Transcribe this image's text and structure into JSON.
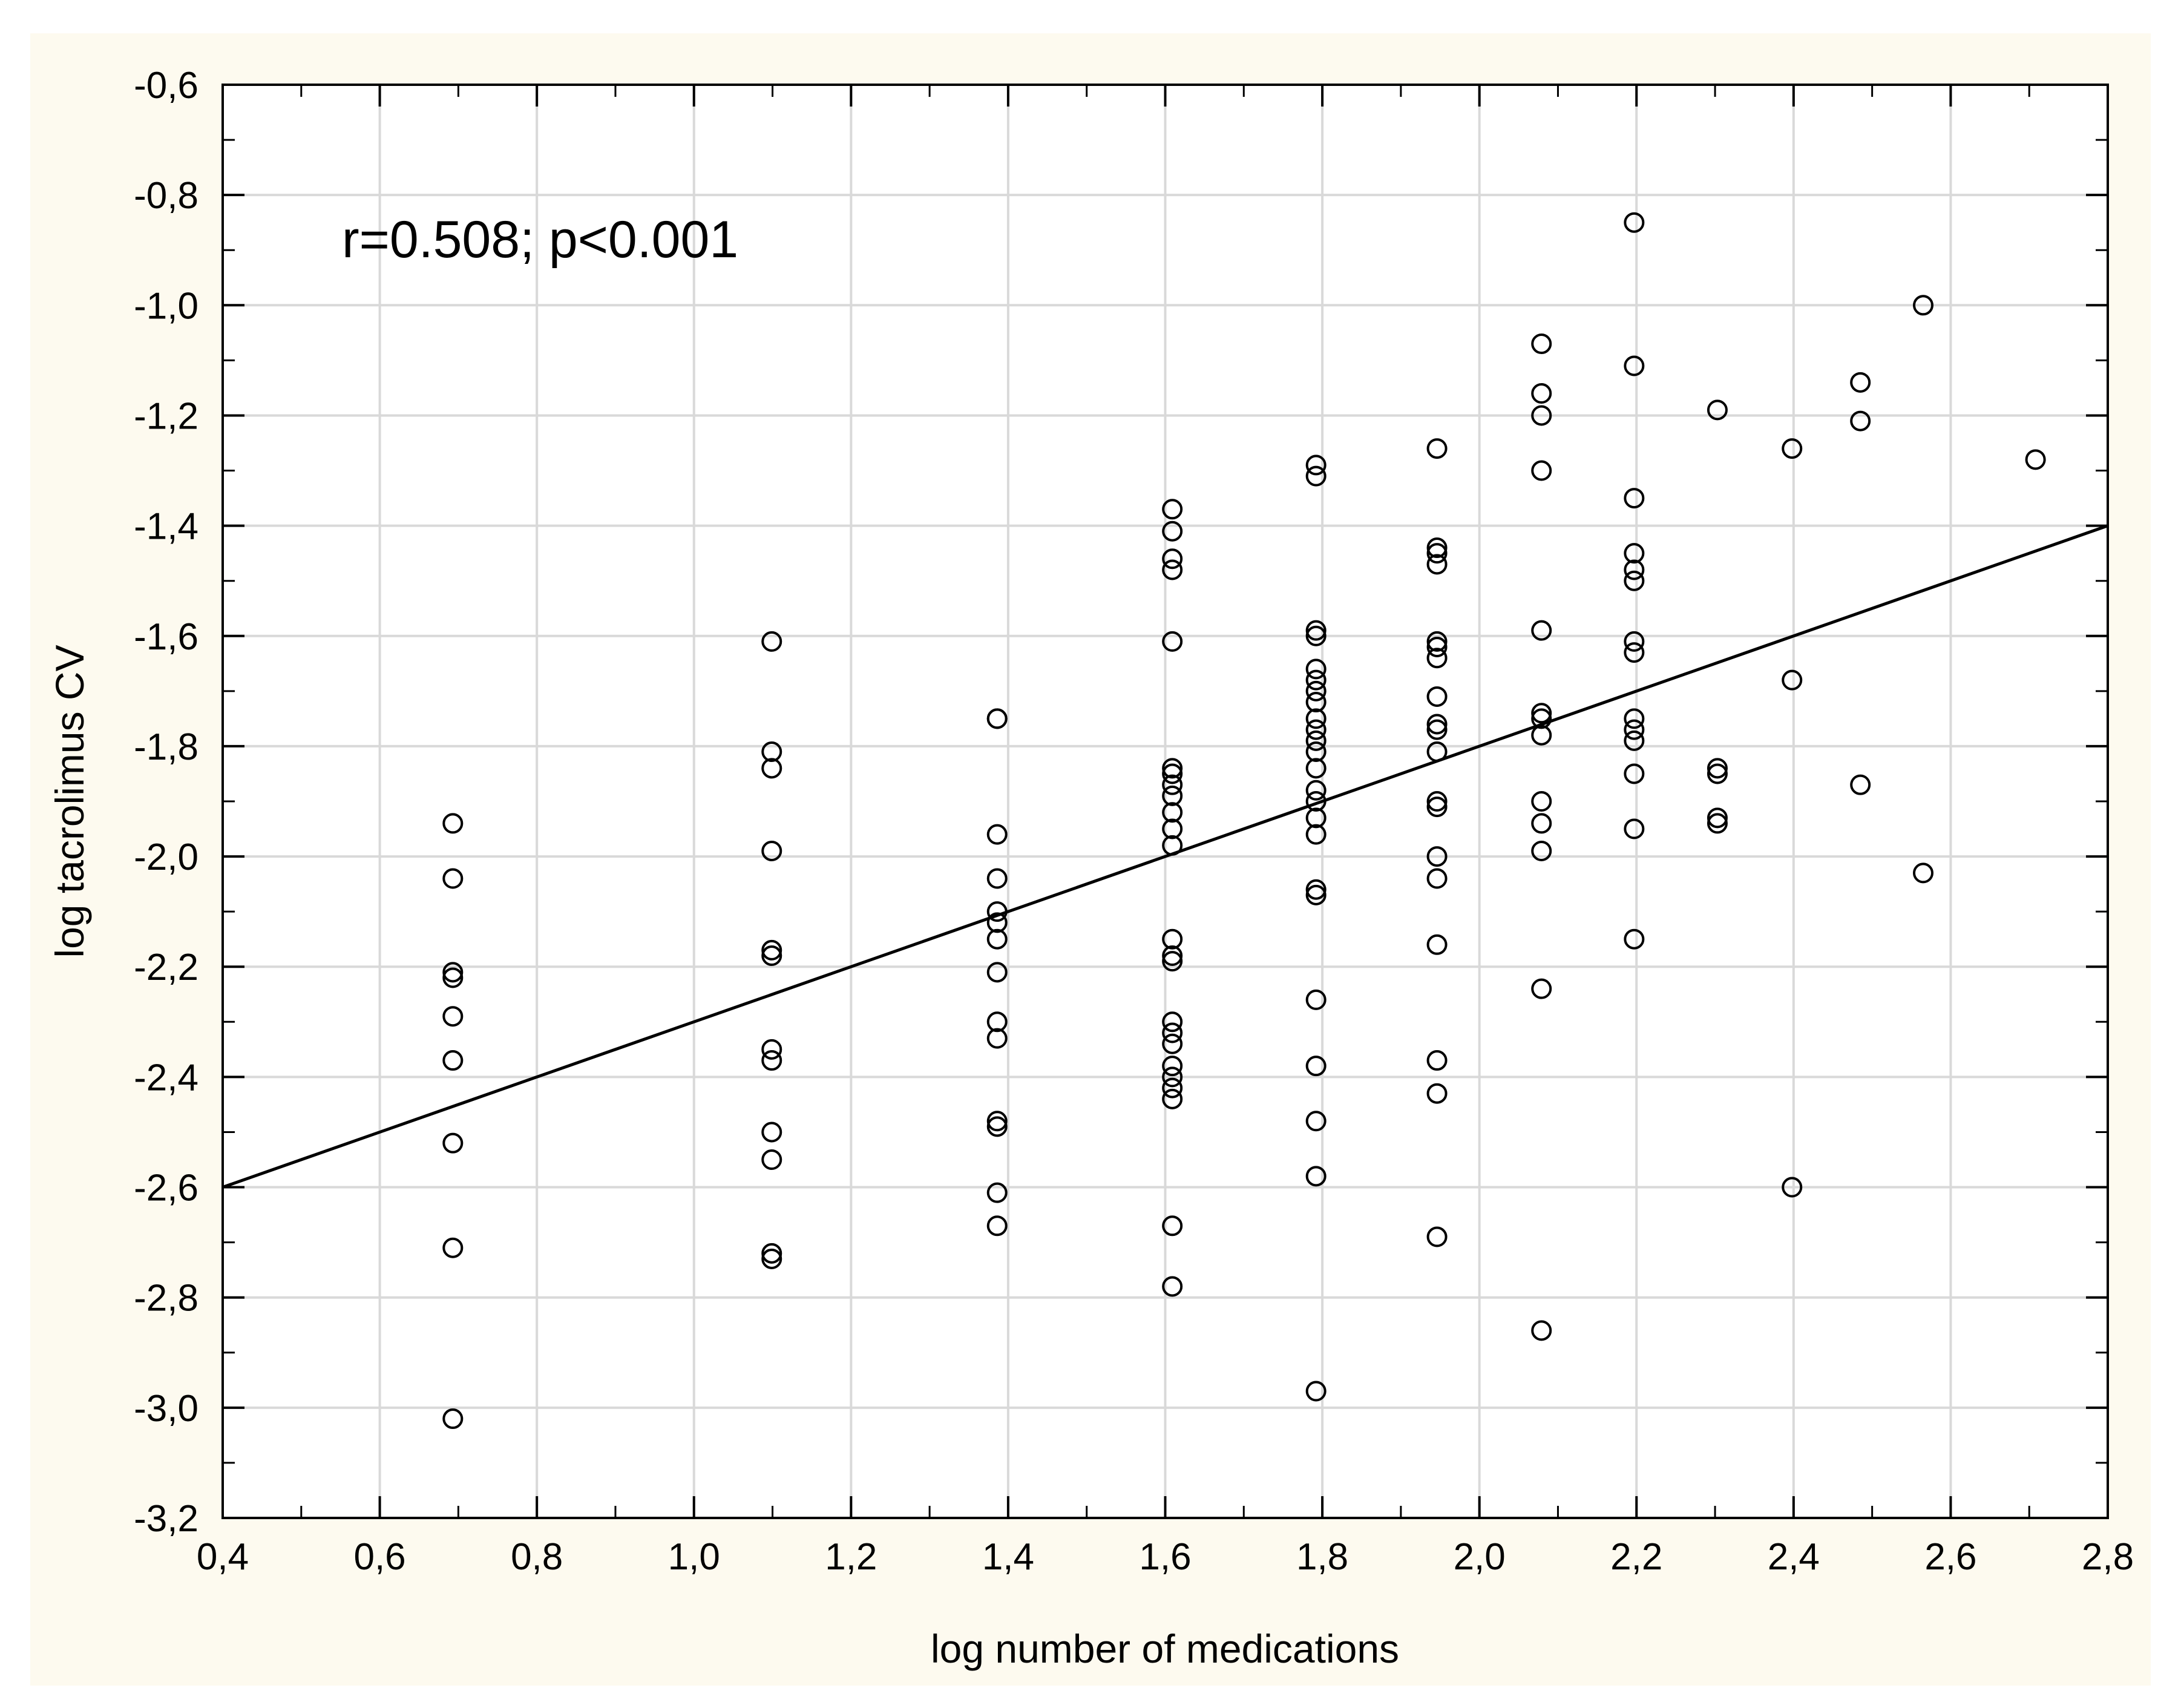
{
  "chart_data": {
    "type": "scatter",
    "title": "",
    "xlabel": "log number of medications",
    "ylabel": "log tacrolimus CV",
    "xlim": [
      0.4,
      2.8
    ],
    "ylim": [
      -3.2,
      -0.6
    ],
    "x_ticks": [
      "0,4",
      "0,6",
      "0,8",
      "1,0",
      "1,2",
      "1,4",
      "1,6",
      "1,8",
      "2,0",
      "2,2",
      "2,4",
      "2,6",
      "2,8"
    ],
    "y_ticks": [
      "-0,6",
      "-0,8",
      "-1,0",
      "-1,2",
      "-1,4",
      "-1,6",
      "-1,8",
      "-2,0",
      "-2,2",
      "-2,4",
      "-2,6",
      "-2,8",
      "-3,0",
      "-3,2"
    ],
    "grid": true,
    "annotation": "r=0.508; p<0.001",
    "regression_line": {
      "x": [
        0.4,
        2.8
      ],
      "y": [
        -2.6,
        -1.4
      ]
    },
    "series": [
      {
        "marker": "open-circle",
        "points": [
          [
            0.693,
            -1.94
          ],
          [
            0.693,
            -2.04
          ],
          [
            0.693,
            -2.21
          ],
          [
            0.693,
            -2.22
          ],
          [
            0.693,
            -2.29
          ],
          [
            0.693,
            -2.37
          ],
          [
            0.693,
            -2.52
          ],
          [
            0.693,
            -2.71
          ],
          [
            0.693,
            -3.02
          ],
          [
            1.099,
            -1.61
          ],
          [
            1.099,
            -1.81
          ],
          [
            1.099,
            -1.84
          ],
          [
            1.099,
            -1.99
          ],
          [
            1.099,
            -2.17
          ],
          [
            1.099,
            -2.18
          ],
          [
            1.099,
            -2.35
          ],
          [
            1.099,
            -2.37
          ],
          [
            1.099,
            -2.5
          ],
          [
            1.099,
            -2.55
          ],
          [
            1.099,
            -2.72
          ],
          [
            1.099,
            -2.73
          ],
          [
            1.386,
            -1.75
          ],
          [
            1.386,
            -1.75
          ],
          [
            1.386,
            -1.96
          ],
          [
            1.386,
            -2.04
          ],
          [
            1.386,
            -2.1
          ],
          [
            1.386,
            -2.12
          ],
          [
            1.386,
            -2.15
          ],
          [
            1.386,
            -2.21
          ],
          [
            1.386,
            -2.3
          ],
          [
            1.386,
            -2.33
          ],
          [
            1.386,
            -2.48
          ],
          [
            1.386,
            -2.49
          ],
          [
            1.386,
            -2.61
          ],
          [
            1.386,
            -2.67
          ],
          [
            1.609,
            -1.37
          ],
          [
            1.609,
            -1.41
          ],
          [
            1.609,
            -1.46
          ],
          [
            1.609,
            -1.48
          ],
          [
            1.609,
            -1.61
          ],
          [
            1.609,
            -1.84
          ],
          [
            1.609,
            -1.85
          ],
          [
            1.609,
            -1.87
          ],
          [
            1.609,
            -1.89
          ],
          [
            1.609,
            -1.92
          ],
          [
            1.609,
            -1.95
          ],
          [
            1.609,
            -1.98
          ],
          [
            1.609,
            -2.15
          ],
          [
            1.609,
            -2.18
          ],
          [
            1.609,
            -2.19
          ],
          [
            1.609,
            -2.3
          ],
          [
            1.609,
            -2.32
          ],
          [
            1.609,
            -2.34
          ],
          [
            1.609,
            -2.38
          ],
          [
            1.609,
            -2.4
          ],
          [
            1.609,
            -2.42
          ],
          [
            1.609,
            -2.44
          ],
          [
            1.609,
            -2.67
          ],
          [
            1.609,
            -2.78
          ],
          [
            1.792,
            -1.29
          ],
          [
            1.792,
            -1.31
          ],
          [
            1.792,
            -1.59
          ],
          [
            1.792,
            -1.6
          ],
          [
            1.792,
            -1.66
          ],
          [
            1.792,
            -1.68
          ],
          [
            1.792,
            -1.7
          ],
          [
            1.792,
            -1.72
          ],
          [
            1.792,
            -1.75
          ],
          [
            1.792,
            -1.77
          ],
          [
            1.792,
            -1.79
          ],
          [
            1.792,
            -1.81
          ],
          [
            1.792,
            -1.84
          ],
          [
            1.792,
            -1.88
          ],
          [
            1.792,
            -1.9
          ],
          [
            1.792,
            -1.93
          ],
          [
            1.792,
            -1.96
          ],
          [
            1.792,
            -2.06
          ],
          [
            1.792,
            -2.07
          ],
          [
            1.792,
            -2.26
          ],
          [
            1.792,
            -2.38
          ],
          [
            1.792,
            -2.48
          ],
          [
            1.792,
            -2.58
          ],
          [
            1.792,
            -2.97
          ],
          [
            1.946,
            -1.26
          ],
          [
            1.946,
            -1.44
          ],
          [
            1.946,
            -1.45
          ],
          [
            1.946,
            -1.47
          ],
          [
            1.946,
            -1.61
          ],
          [
            1.946,
            -1.62
          ],
          [
            1.946,
            -1.64
          ],
          [
            1.946,
            -1.71
          ],
          [
            1.946,
            -1.76
          ],
          [
            1.946,
            -1.77
          ],
          [
            1.946,
            -1.81
          ],
          [
            1.946,
            -1.9
          ],
          [
            1.946,
            -1.91
          ],
          [
            1.946,
            -2.0
          ],
          [
            1.946,
            -2.04
          ],
          [
            1.946,
            -2.16
          ],
          [
            1.946,
            -2.37
          ],
          [
            1.946,
            -2.43
          ],
          [
            1.946,
            -2.69
          ],
          [
            2.079,
            -1.07
          ],
          [
            2.079,
            -1.16
          ],
          [
            2.079,
            -1.2
          ],
          [
            2.079,
            -1.3
          ],
          [
            2.079,
            -1.59
          ],
          [
            2.079,
            -1.74
          ],
          [
            2.079,
            -1.75
          ],
          [
            2.079,
            -1.78
          ],
          [
            2.079,
            -1.9
          ],
          [
            2.079,
            -1.94
          ],
          [
            2.079,
            -1.99
          ],
          [
            2.079,
            -2.24
          ],
          [
            2.079,
            -2.86
          ],
          [
            2.197,
            -0.85
          ],
          [
            2.197,
            -1.11
          ],
          [
            2.197,
            -1.35
          ],
          [
            2.197,
            -1.45
          ],
          [
            2.197,
            -1.48
          ],
          [
            2.197,
            -1.5
          ],
          [
            2.197,
            -1.61
          ],
          [
            2.197,
            -1.63
          ],
          [
            2.197,
            -1.75
          ],
          [
            2.197,
            -1.77
          ],
          [
            2.197,
            -1.79
          ],
          [
            2.197,
            -1.85
          ],
          [
            2.197,
            -1.95
          ],
          [
            2.197,
            -2.15
          ],
          [
            2.303,
            -1.19
          ],
          [
            2.303,
            -1.84
          ],
          [
            2.303,
            -1.85
          ],
          [
            2.303,
            -1.93
          ],
          [
            2.303,
            -1.94
          ],
          [
            2.398,
            -1.26
          ],
          [
            2.398,
            -1.68
          ],
          [
            2.398,
            -2.6
          ],
          [
            2.485,
            -1.14
          ],
          [
            2.485,
            -1.21
          ],
          [
            2.485,
            -1.87
          ],
          [
            2.565,
            -1.0
          ],
          [
            2.565,
            -2.03
          ],
          [
            2.708,
            -1.28
          ]
        ]
      }
    ]
  }
}
